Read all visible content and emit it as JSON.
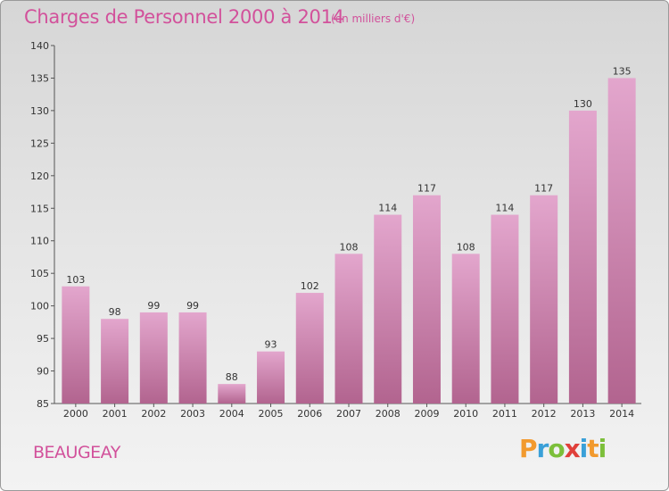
{
  "chart_data": {
    "type": "bar",
    "title": "Charges de Personnel 2000 à 2014",
    "subtitle": "(en milliers d'€)",
    "categories": [
      "2000",
      "2001",
      "2002",
      "2003",
      "2004",
      "2005",
      "2006",
      "2007",
      "2008",
      "2009",
      "2010",
      "2011",
      "2012",
      "2013",
      "2014"
    ],
    "values": [
      103,
      98,
      99,
      99,
      88,
      93,
      102,
      108,
      114,
      117,
      108,
      114,
      117,
      130,
      135
    ],
    "ylim": [
      85,
      140
    ],
    "yticks": [
      85,
      90,
      95,
      100,
      105,
      110,
      115,
      120,
      125,
      130,
      135,
      140
    ],
    "grid": false,
    "colors": {
      "bar_top": "#e3a6cd",
      "bar_bottom": "#b2648f",
      "text": "#d2519b"
    }
  },
  "footer": {
    "town": "BEAUGEAY"
  },
  "logo": {
    "text": "Proxiti",
    "letters": [
      {
        "ch": "P",
        "color": "#f29a2e"
      },
      {
        "ch": "r",
        "color": "#3aa0d8"
      },
      {
        "ch": "o",
        "color": "#7cbf3a"
      },
      {
        "ch": "x",
        "color": "#e0403a"
      },
      {
        "ch": "i",
        "color": "#3aa0d8"
      },
      {
        "ch": "t",
        "color": "#f29a2e"
      },
      {
        "ch": "i",
        "color": "#7cbf3a"
      }
    ]
  }
}
